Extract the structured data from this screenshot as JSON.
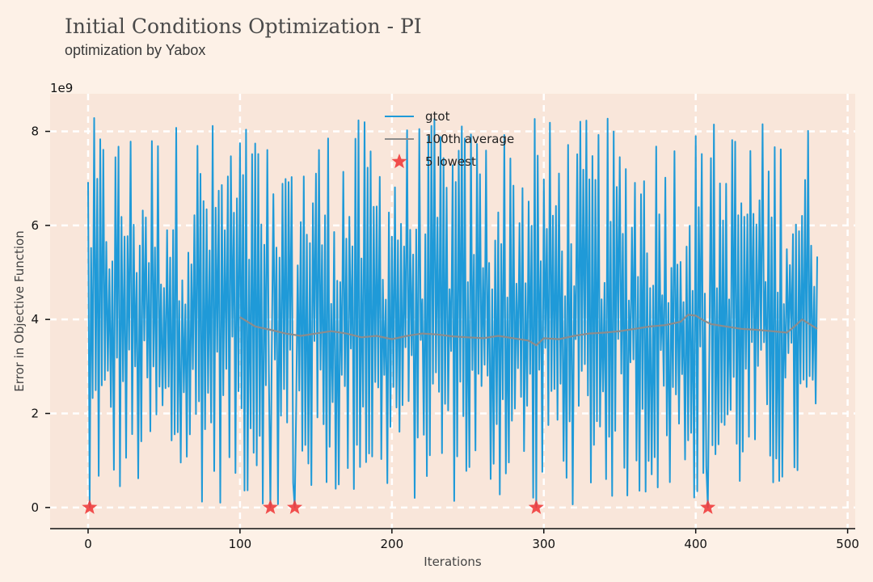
{
  "title": "Initial Conditions Optimization - PI",
  "subtitle": "optimization by Yabox",
  "colors": {
    "background": "#fdf1e7",
    "plot_background": "#f9e6da",
    "grid": "#ffffff",
    "series_gtot": "#1f9ad8",
    "series_average": "#8c8c8c",
    "marker_lowest": "#f03c3c"
  },
  "chart_data": {
    "type": "line",
    "title": "Initial Conditions Optimization - PI",
    "subtitle": "optimization by Yabox",
    "xlabel": "Iterations",
    "ylabel": "Error in Objective Function",
    "y_multiplier_label": "1e9",
    "xlim": [
      -25,
      505
    ],
    "ylim": [
      -0.45,
      8.8
    ],
    "x_ticks": [
      0,
      100,
      200,
      300,
      400,
      500
    ],
    "y_ticks": [
      0,
      2,
      4,
      6,
      8
    ],
    "grid": true,
    "legend_position": "top-center",
    "series": [
      {
        "name": "gtot",
        "type": "line",
        "x_range": [
          0,
          480
        ],
        "values_description_note": "",
        "min": 0.0,
        "max": 8.3
      },
      {
        "name": "100th average",
        "type": "line",
        "x": [
          100,
          105,
          110,
          120,
          130,
          140,
          150,
          160,
          170,
          180,
          190,
          200,
          210,
          220,
          230,
          240,
          250,
          260,
          270,
          280,
          290,
          295,
          300,
          310,
          320,
          330,
          340,
          350,
          360,
          370,
          380,
          390,
          395,
          400,
          405,
          410,
          420,
          430,
          440,
          450,
          460,
          465,
          470,
          480
        ],
        "y": [
          4.05,
          3.95,
          3.85,
          3.78,
          3.7,
          3.65,
          3.7,
          3.75,
          3.7,
          3.62,
          3.65,
          3.58,
          3.65,
          3.7,
          3.68,
          3.64,
          3.62,
          3.6,
          3.65,
          3.6,
          3.55,
          3.45,
          3.6,
          3.58,
          3.65,
          3.7,
          3.72,
          3.75,
          3.8,
          3.85,
          3.88,
          3.95,
          4.1,
          4.08,
          3.98,
          3.9,
          3.85,
          3.8,
          3.78,
          3.75,
          3.72,
          3.85,
          4.0,
          3.8
        ]
      },
      {
        "name": "5 lowest",
        "type": "scatter",
        "marker": "star",
        "x": [
          1,
          120,
          136,
          295,
          408
        ],
        "y": [
          0,
          0,
          0,
          0,
          0
        ]
      }
    ]
  }
}
